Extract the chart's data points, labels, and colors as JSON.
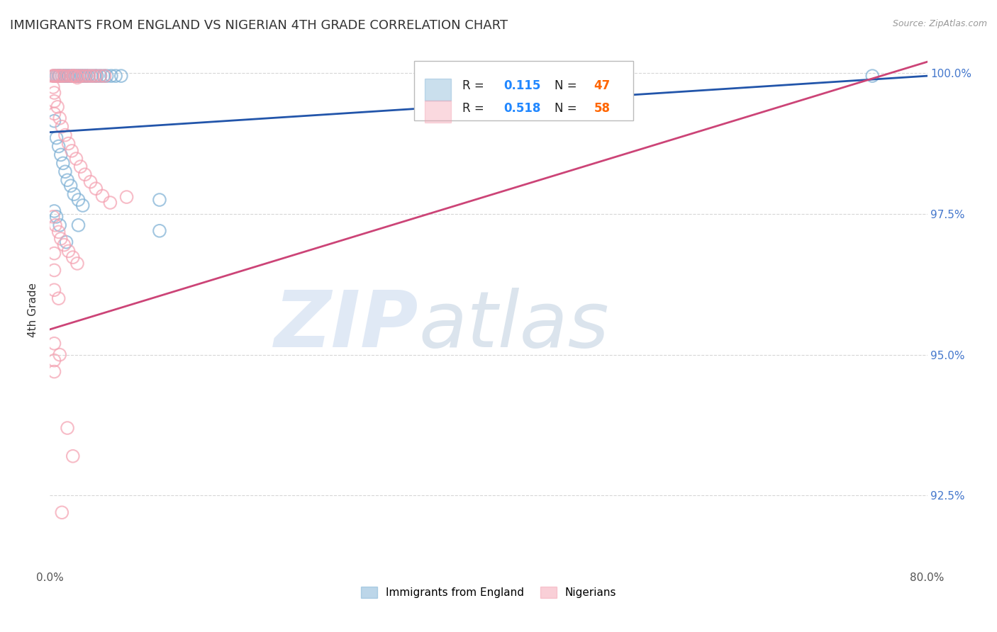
{
  "title": "IMMIGRANTS FROM ENGLAND VS NIGERIAN 4TH GRADE CORRELATION CHART",
  "source": "Source: ZipAtlas.com",
  "ylabel": "4th Grade",
  "xlim": [
    0.0,
    0.8
  ],
  "ylim": [
    0.912,
    1.004
  ],
  "xticks": [
    0.0,
    0.1,
    0.2,
    0.3,
    0.4,
    0.5,
    0.6,
    0.7,
    0.8
  ],
  "xticklabels": [
    "0.0%",
    "",
    "",
    "",
    "",
    "",
    "",
    "",
    "80.0%"
  ],
  "ytick_vals": [
    0.925,
    0.95,
    0.975,
    1.0
  ],
  "ytick_labels": [
    "92.5%",
    "95.0%",
    "97.5%",
    "100.0%"
  ],
  "england_color": "#7BAFD4",
  "nigerian_color": "#F4A0B0",
  "england_line_color": "#2255AA",
  "nigerian_line_color": "#CC4477",
  "legend_R_color": "#3399FF",
  "legend_N_color": "#FF6600",
  "england_line_x": [
    0.0,
    0.8
  ],
  "england_line_y": [
    0.9895,
    0.9995
  ],
  "nigerian_line_x": [
    0.0,
    0.8
  ],
  "nigerian_line_y": [
    0.9545,
    1.002
  ],
  "england_points": [
    [
      0.004,
      0.9995
    ],
    [
      0.006,
      0.9995
    ],
    [
      0.008,
      0.9995
    ],
    [
      0.009,
      0.9995
    ],
    [
      0.011,
      0.9995
    ],
    [
      0.013,
      0.9995
    ],
    [
      0.014,
      0.9995
    ],
    [
      0.016,
      0.9995
    ],
    [
      0.017,
      0.9995
    ],
    [
      0.019,
      0.9995
    ],
    [
      0.021,
      0.9995
    ],
    [
      0.023,
      0.9995
    ],
    [
      0.025,
      0.9995
    ],
    [
      0.027,
      0.9995
    ],
    [
      0.029,
      0.9995
    ],
    [
      0.031,
      0.9995
    ],
    [
      0.033,
      0.9995
    ],
    [
      0.035,
      0.9995
    ],
    [
      0.038,
      0.9995
    ],
    [
      0.041,
      0.9995
    ],
    [
      0.043,
      0.9995
    ],
    [
      0.046,
      0.9995
    ],
    [
      0.049,
      0.9995
    ],
    [
      0.052,
      0.9995
    ],
    [
      0.056,
      0.9995
    ],
    [
      0.06,
      0.9995
    ],
    [
      0.065,
      0.9995
    ],
    [
      0.004,
      0.9915
    ],
    [
      0.006,
      0.9885
    ],
    [
      0.008,
      0.987
    ],
    [
      0.01,
      0.9855
    ],
    [
      0.012,
      0.984
    ],
    [
      0.014,
      0.9825
    ],
    [
      0.016,
      0.981
    ],
    [
      0.019,
      0.98
    ],
    [
      0.022,
      0.9785
    ],
    [
      0.026,
      0.9775
    ],
    [
      0.03,
      0.9765
    ],
    [
      0.004,
      0.9755
    ],
    [
      0.006,
      0.9745
    ],
    [
      0.009,
      0.973
    ],
    [
      0.026,
      0.973
    ],
    [
      0.1,
      0.9775
    ],
    [
      0.35,
      0.9995
    ],
    [
      0.75,
      0.9995
    ],
    [
      0.1,
      0.972
    ],
    [
      0.015,
      0.97
    ]
  ],
  "nigerian_points": [
    [
      0.003,
      0.9995
    ],
    [
      0.005,
      0.9995
    ],
    [
      0.007,
      0.9995
    ],
    [
      0.009,
      0.9995
    ],
    [
      0.011,
      0.9995
    ],
    [
      0.013,
      0.9995
    ],
    [
      0.016,
      0.9995
    ],
    [
      0.019,
      0.9995
    ],
    [
      0.021,
      0.9995
    ],
    [
      0.024,
      0.9995
    ],
    [
      0.027,
      0.9995
    ],
    [
      0.03,
      0.9995
    ],
    [
      0.033,
      0.9995
    ],
    [
      0.036,
      0.9995
    ],
    [
      0.039,
      0.9995
    ],
    [
      0.042,
      0.9995
    ],
    [
      0.046,
      0.9995
    ],
    [
      0.05,
      0.9995
    ],
    [
      0.004,
      0.9965
    ],
    [
      0.007,
      0.994
    ],
    [
      0.009,
      0.992
    ],
    [
      0.011,
      0.9905
    ],
    [
      0.014,
      0.989
    ],
    [
      0.017,
      0.9875
    ],
    [
      0.02,
      0.9862
    ],
    [
      0.024,
      0.9848
    ],
    [
      0.028,
      0.9834
    ],
    [
      0.032,
      0.982
    ],
    [
      0.037,
      0.9807
    ],
    [
      0.042,
      0.9795
    ],
    [
      0.048,
      0.9782
    ],
    [
      0.055,
      0.977
    ],
    [
      0.003,
      0.9745
    ],
    [
      0.005,
      0.973
    ],
    [
      0.008,
      0.9718
    ],
    [
      0.01,
      0.9706
    ],
    [
      0.013,
      0.9695
    ],
    [
      0.017,
      0.9684
    ],
    [
      0.021,
      0.9673
    ],
    [
      0.025,
      0.9662
    ],
    [
      0.004,
      0.9615
    ],
    [
      0.008,
      0.96
    ],
    [
      0.004,
      0.952
    ],
    [
      0.009,
      0.95
    ],
    [
      0.07,
      0.978
    ],
    [
      0.016,
      0.937
    ],
    [
      0.021,
      0.932
    ],
    [
      0.011,
      0.922
    ],
    [
      0.003,
      0.9995
    ],
    [
      0.003,
      0.9975
    ],
    [
      0.004,
      0.995
    ],
    [
      0.004,
      0.9928
    ],
    [
      0.004,
      0.968
    ],
    [
      0.004,
      0.965
    ],
    [
      0.004,
      0.949
    ],
    [
      0.004,
      0.947
    ],
    [
      0.022,
      0.9995
    ],
    [
      0.025,
      0.9992
    ]
  ]
}
